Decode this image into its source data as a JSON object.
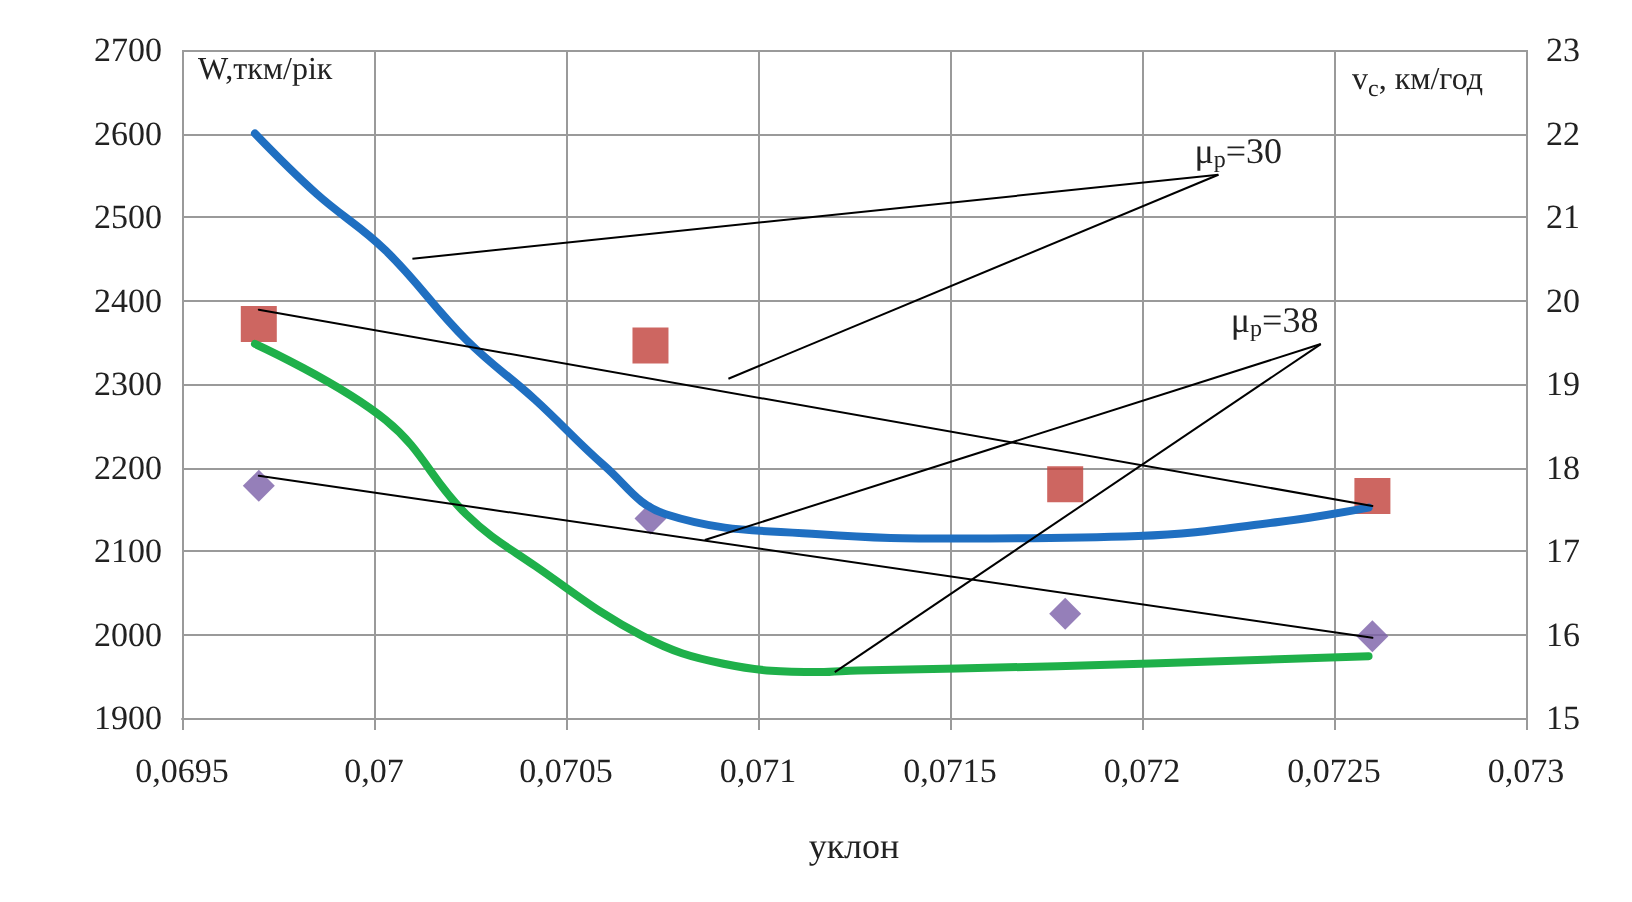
{
  "chart_data": {
    "type": "line",
    "xlabel": "уклон",
    "ylabel": "W,ткм/рік",
    "y2label": "v$_{c}$, км/год",
    "xlim": [
      0.0695,
      0.073
    ],
    "xticks": [
      {
        "value": 0.0695,
        "label": "0,0695"
      },
      {
        "value": 0.07,
        "label": "0,07"
      },
      {
        "value": 0.0705,
        "label": "0,0705"
      },
      {
        "value": 0.071,
        "label": "0,071"
      },
      {
        "value": 0.0715,
        "label": "0,0715"
      },
      {
        "value": 0.072,
        "label": "0,072"
      },
      {
        "value": 0.0725,
        "label": "0,0725"
      },
      {
        "value": 0.073,
        "label": "0,073"
      }
    ],
    "ylim": [
      1900,
      2700
    ],
    "yticks": [
      1900,
      2000,
      2100,
      2200,
      2300,
      2400,
      2500,
      2600,
      2700
    ],
    "y2lim": [
      15,
      23
    ],
    "y2ticks": [
      15,
      16,
      17,
      18,
      19,
      20,
      21,
      22,
      23
    ],
    "grid": true,
    "series": [
      {
        "type": "line",
        "color": "#1f6fc1",
        "marker": "none",
        "x": [
          0.06969,
          0.06985,
          0.07003,
          0.07024,
          0.07042,
          0.0706,
          0.07076,
          0.07116,
          0.07153,
          0.07199,
          0.07236,
          0.07259
        ],
        "values": [
          2600,
          2528,
          2460,
          2353,
          2281,
          2202,
          2144,
          2120,
          2115,
          2118,
          2135,
          2152
        ]
      },
      {
        "type": "line",
        "color": "#1fb04a",
        "marker": "none",
        "x": [
          0.06969,
          0.07003,
          0.07024,
          0.07042,
          0.0707,
          0.07091,
          0.07116,
          0.07126,
          0.07178,
          0.07259
        ],
        "values": [
          2348,
          2257,
          2144,
          2082,
          1998,
          1965,
          1955,
          1957,
          1962,
          1974
        ]
      },
      {
        "type": "scatter",
        "axis": "y2",
        "color": "#c0403a",
        "marker": "square",
        "x": [
          0.0697,
          0.07072,
          0.0718,
          0.0726
        ],
        "values": [
          19.72,
          19.46,
          17.8,
          17.66
        ]
      },
      {
        "type": "scatter",
        "axis": "y2",
        "color": "#7b5fa8",
        "marker": "diamond",
        "x": [
          0.0697,
          0.07072,
          0.0718,
          0.0726
        ],
        "values": [
          17.78,
          17.39,
          16.25,
          15.98
        ]
      },
      {
        "type": "line",
        "axis": "y2",
        "color": "#000000",
        "marker": "none",
        "x": [
          0.0697,
          0.0726
        ],
        "values": [
          19.89,
          17.54
        ]
      },
      {
        "type": "line",
        "axis": "y2",
        "color": "#000000",
        "marker": "none",
        "x": [
          0.0697,
          0.0726
        ],
        "values": [
          17.9,
          15.96
        ]
      }
    ],
    "annotations": [
      {
        "text": "μ$_{p}$=30",
        "x": 0.0701,
        "y": 2450
      },
      {
        "text": "μ$_{p}$=38",
        "x": 0.0712,
        "y": 1955
      }
    ]
  }
}
